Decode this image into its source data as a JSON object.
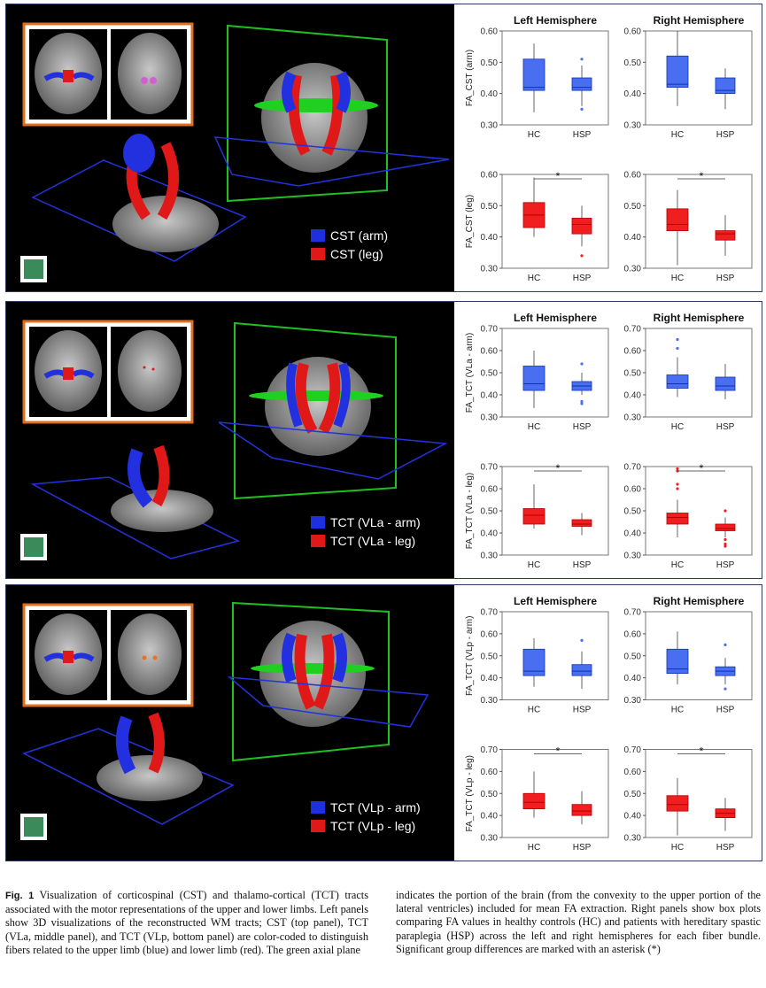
{
  "panels": [
    {
      "id": "cst",
      "legend": [
        {
          "label": "CST (arm)",
          "color": "#1e2fe0"
        },
        {
          "label": "CST (leg)",
          "color": "#e01818"
        }
      ],
      "chart_data": [
        {
          "type": "box",
          "title": "Left Hemisphere",
          "ylabel": "FA_CST (arm)",
          "ylim": [
            0.3,
            0.6
          ],
          "yticks": [
            "0.30",
            "0.40",
            "0.50",
            "0.60"
          ],
          "categories": [
            "HC",
            "HSP"
          ],
          "color": "#4a6ef0",
          "significant": false,
          "boxes": [
            {
              "min": 0.34,
              "q1": 0.41,
              "median": 0.42,
              "q3": 0.51,
              "max": 0.56,
              "outliers": []
            },
            {
              "min": 0.36,
              "q1": 0.41,
              "median": 0.42,
              "q3": 0.45,
              "max": 0.49,
              "outliers": [
                0.51,
                0.35
              ]
            }
          ]
        },
        {
          "type": "box",
          "title": "Right Hemisphere",
          "ylabel": "",
          "ylim": [
            0.3,
            0.6
          ],
          "yticks": [
            "0.30",
            "0.40",
            "0.50",
            "0.60"
          ],
          "categories": [
            "HC",
            "HSP"
          ],
          "color": "#4a6ef0",
          "significant": false,
          "boxes": [
            {
              "min": 0.36,
              "q1": 0.42,
              "median": 0.43,
              "q3": 0.52,
              "max": 0.6,
              "outliers": []
            },
            {
              "min": 0.35,
              "q1": 0.4,
              "median": 0.41,
              "q3": 0.45,
              "max": 0.48,
              "outliers": []
            }
          ]
        },
        {
          "type": "box",
          "title": "",
          "ylabel": "FA_CST (leg)",
          "ylim": [
            0.3,
            0.6
          ],
          "yticks": [
            "0.30",
            "0.40",
            "0.50",
            "0.60"
          ],
          "categories": [
            "HC",
            "HSP"
          ],
          "color": "#f01e1e",
          "significant": true,
          "sig_label": "*",
          "boxes": [
            {
              "min": 0.4,
              "q1": 0.43,
              "median": 0.47,
              "q3": 0.51,
              "max": 0.59,
              "outliers": []
            },
            {
              "min": 0.37,
              "q1": 0.41,
              "median": 0.44,
              "q3": 0.46,
              "max": 0.5,
              "outliers": [
                0.34
              ]
            }
          ]
        },
        {
          "type": "box",
          "title": "",
          "ylabel": "",
          "ylim": [
            0.3,
            0.6
          ],
          "yticks": [
            "0.30",
            "0.40",
            "0.50",
            "0.60"
          ],
          "categories": [
            "HC",
            "HSP"
          ],
          "color": "#f01e1e",
          "significant": true,
          "sig_label": "*",
          "boxes": [
            {
              "min": 0.31,
              "q1": 0.42,
              "median": 0.44,
              "q3": 0.49,
              "max": 0.55,
              "outliers": []
            },
            {
              "min": 0.34,
              "q1": 0.39,
              "median": 0.41,
              "q3": 0.42,
              "max": 0.47,
              "outliers": []
            }
          ]
        }
      ]
    },
    {
      "id": "tct-vla",
      "legend": [
        {
          "label": "TCT (VLa - arm)",
          "color": "#1e2fe0"
        },
        {
          "label": "TCT (VLa - leg)",
          "color": "#e01818"
        }
      ],
      "chart_data": [
        {
          "type": "box",
          "title": "Left Hemisphere",
          "ylabel": "FA_TCT (VLa - arm)",
          "ylim": [
            0.3,
            0.7
          ],
          "yticks": [
            "0.30",
            "0.40",
            "0.50",
            "0.60",
            "0.70"
          ],
          "categories": [
            "HC",
            "HSP"
          ],
          "color": "#4a6ef0",
          "significant": false,
          "boxes": [
            {
              "min": 0.34,
              "q1": 0.42,
              "median": 0.45,
              "q3": 0.53,
              "max": 0.6,
              "outliers": []
            },
            {
              "min": 0.4,
              "q1": 0.42,
              "median": 0.44,
              "q3": 0.46,
              "max": 0.5,
              "outliers": [
                0.54,
                0.37,
                0.36
              ]
            }
          ]
        },
        {
          "type": "box",
          "title": "Right Hemisphere",
          "ylabel": "",
          "ylim": [
            0.3,
            0.7
          ],
          "yticks": [
            "0.30",
            "0.40",
            "0.50",
            "0.60",
            "0.70"
          ],
          "categories": [
            "HC",
            "HSP"
          ],
          "color": "#4a6ef0",
          "significant": false,
          "boxes": [
            {
              "min": 0.39,
              "q1": 0.43,
              "median": 0.45,
              "q3": 0.49,
              "max": 0.57,
              "outliers": [
                0.65,
                0.61
              ]
            },
            {
              "min": 0.38,
              "q1": 0.42,
              "median": 0.44,
              "q3": 0.48,
              "max": 0.54,
              "outliers": []
            }
          ]
        },
        {
          "type": "box",
          "title": "",
          "ylabel": "FA_TCT (VLa - leg)",
          "ylim": [
            0.3,
            0.7
          ],
          "yticks": [
            "0.30",
            "0.40",
            "0.50",
            "0.60",
            "0.70"
          ],
          "categories": [
            "HC",
            "HSP"
          ],
          "color": "#f01e1e",
          "significant": true,
          "sig_label": "*",
          "boxes": [
            {
              "min": 0.42,
              "q1": 0.44,
              "median": 0.48,
              "q3": 0.51,
              "max": 0.62,
              "outliers": []
            },
            {
              "min": 0.39,
              "q1": 0.43,
              "median": 0.44,
              "q3": 0.46,
              "max": 0.49,
              "outliers": []
            }
          ]
        },
        {
          "type": "box",
          "title": "",
          "ylabel": "",
          "ylim": [
            0.3,
            0.7
          ],
          "yticks": [
            "0.30",
            "0.40",
            "0.50",
            "0.60",
            "0.70"
          ],
          "categories": [
            "HC",
            "HSP"
          ],
          "color": "#f01e1e",
          "significant": true,
          "sig_label": "*",
          "boxes": [
            {
              "min": 0.38,
              "q1": 0.44,
              "median": 0.47,
              "q3": 0.49,
              "max": 0.55,
              "outliers": [
                0.69,
                0.68,
                0.62,
                0.6
              ]
            },
            {
              "min": 0.38,
              "q1": 0.41,
              "median": 0.42,
              "q3": 0.44,
              "max": 0.47,
              "outliers": [
                0.5,
                0.37,
                0.35,
                0.34
              ]
            }
          ]
        }
      ]
    },
    {
      "id": "tct-vlp",
      "legend": [
        {
          "label": "TCT (VLp - arm)",
          "color": "#1e2fe0"
        },
        {
          "label": "TCT (VLp - leg)",
          "color": "#e01818"
        }
      ],
      "chart_data": [
        {
          "type": "box",
          "title": "Left Hemisphere",
          "ylabel": "FA_TCT (VLp - arm)",
          "ylim": [
            0.3,
            0.7
          ],
          "yticks": [
            "0.30",
            "0.40",
            "0.50",
            "0.60",
            "0.70"
          ],
          "categories": [
            "HC",
            "HSP"
          ],
          "color": "#4a6ef0",
          "significant": false,
          "boxes": [
            {
              "min": 0.36,
              "q1": 0.41,
              "median": 0.43,
              "q3": 0.53,
              "max": 0.58,
              "outliers": []
            },
            {
              "min": 0.35,
              "q1": 0.41,
              "median": 0.43,
              "q3": 0.46,
              "max": 0.52,
              "outliers": [
                0.57
              ]
            }
          ]
        },
        {
          "type": "box",
          "title": "Right Hemisphere",
          "ylabel": "",
          "ylim": [
            0.3,
            0.7
          ],
          "yticks": [
            "0.30",
            "0.40",
            "0.50",
            "0.60",
            "0.70"
          ],
          "categories": [
            "HC",
            "HSP"
          ],
          "color": "#4a6ef0",
          "significant": false,
          "boxes": [
            {
              "min": 0.37,
              "q1": 0.42,
              "median": 0.44,
              "q3": 0.53,
              "max": 0.61,
              "outliers": []
            },
            {
              "min": 0.37,
              "q1": 0.41,
              "median": 0.43,
              "q3": 0.45,
              "max": 0.49,
              "outliers": [
                0.55,
                0.35
              ]
            }
          ]
        },
        {
          "type": "box",
          "title": "",
          "ylabel": "FA_TCT (VLp - leg)",
          "ylim": [
            0.3,
            0.7
          ],
          "yticks": [
            "0.30",
            "0.40",
            "0.50",
            "0.60",
            "0.70"
          ],
          "categories": [
            "HC",
            "HSP"
          ],
          "color": "#f01e1e",
          "significant": true,
          "sig_label": "*",
          "boxes": [
            {
              "min": 0.39,
              "q1": 0.43,
              "median": 0.46,
              "q3": 0.5,
              "max": 0.6,
              "outliers": []
            },
            {
              "min": 0.36,
              "q1": 0.4,
              "median": 0.42,
              "q3": 0.45,
              "max": 0.51,
              "outliers": []
            }
          ]
        },
        {
          "type": "box",
          "title": "",
          "ylabel": "",
          "ylim": [
            0.3,
            0.7
          ],
          "yticks": [
            "0.30",
            "0.40",
            "0.50",
            "0.60",
            "0.70"
          ],
          "categories": [
            "HC",
            "HSP"
          ],
          "color": "#f01e1e",
          "significant": true,
          "sig_label": "*",
          "boxes": [
            {
              "min": 0.31,
              "q1": 0.42,
              "median": 0.45,
              "q3": 0.49,
              "max": 0.57,
              "outliers": []
            },
            {
              "min": 0.33,
              "q1": 0.39,
              "median": 0.41,
              "q3": 0.43,
              "max": 0.48,
              "outliers": []
            }
          ]
        }
      ]
    }
  ],
  "caption": {
    "label": "Fig. 1",
    "left": "Visualization of corticospinal (CST) and thalamo-cortical (TCT) tracts associated with the motor representations of the upper and lower limbs. Left panels show 3D visualizations of the reconstructed WM tracts; CST (top panel), TCT (VLa, middle panel), and TCT (VLp, bottom panel) are color-coded to distinguish fibers related to the upper limb (blue) and lower limb (red). The green axial plane",
    "right": "indicates the portion of the brain (from the convexity to the upper portion of the lateral ventricles) included for mean FA extraction. Right panels show box plots comparing FA values in healthy controls (HC) and patients with hereditary spastic paraplegia (HSP) across the left and right hemispheres for each fiber bundle. Significant group differences are marked with an asterisk (*)"
  }
}
